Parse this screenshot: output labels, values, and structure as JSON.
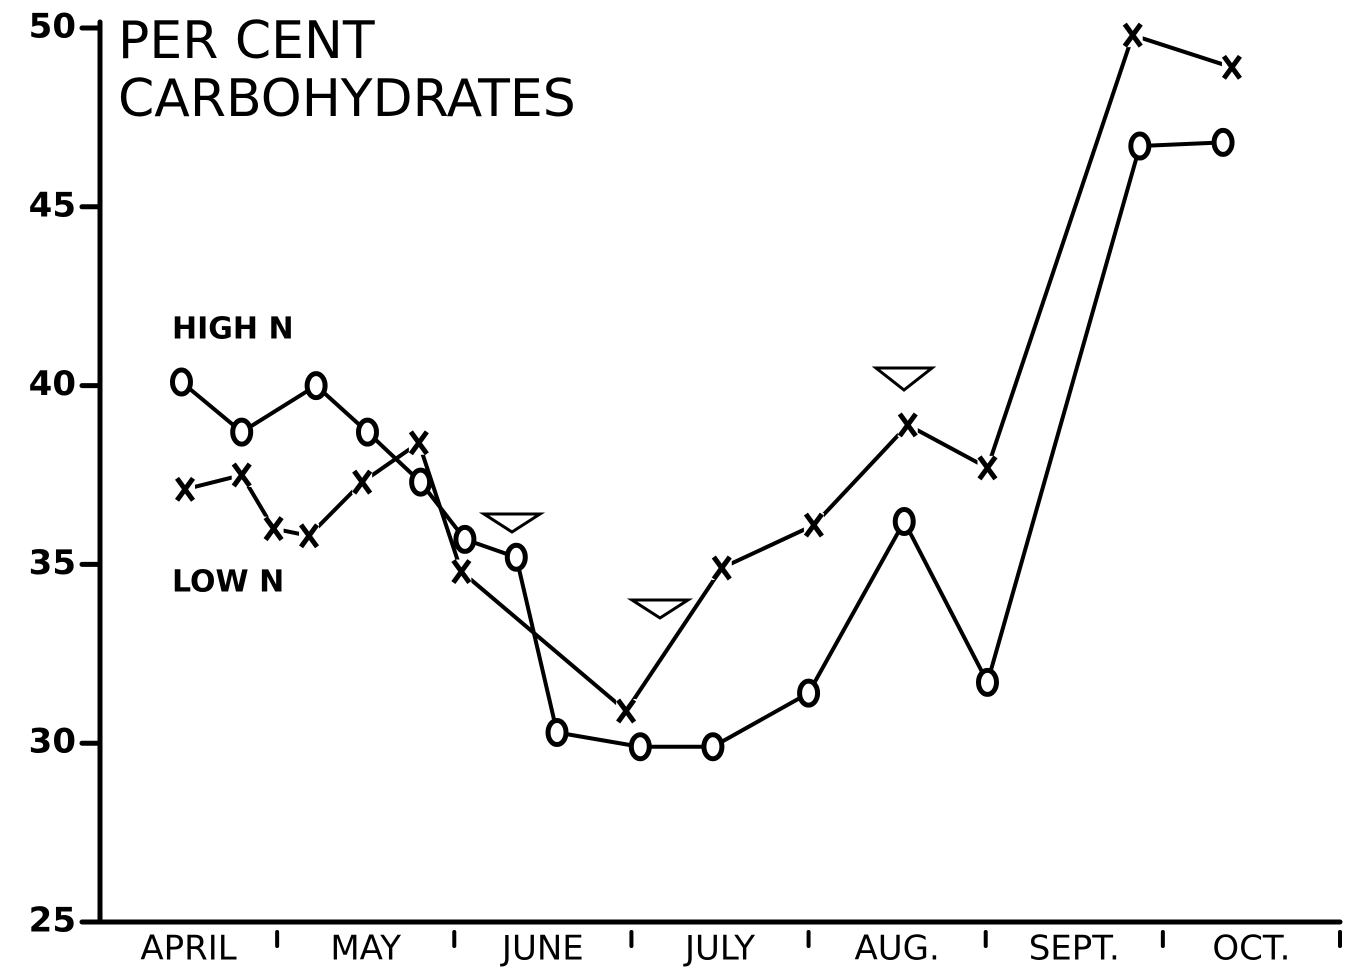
{
  "chart_data": {
    "type": "line",
    "title": [
      "PER CENT",
      "CARBOHYDRATES"
    ],
    "categories": [
      "APRIL",
      "MAY",
      "JUNE",
      "JULY",
      "AUG.",
      "SEPT.",
      "OCT."
    ],
    "xlim": [
      0,
      7
    ],
    "xticks": [
      1,
      2,
      3,
      4,
      5,
      6,
      7
    ],
    "ylim": [
      25,
      50
    ],
    "yticks": [
      25,
      30,
      35,
      40,
      45,
      50
    ],
    "grid": false,
    "series": [
      {
        "name": "HIGH N",
        "marker": "o",
        "color": "#000000",
        "x": [
          0.46,
          0.8,
          1.22,
          1.51,
          1.81,
          2.06,
          2.35,
          2.58,
          3.05,
          3.46,
          4.0,
          4.54,
          5.01,
          5.87,
          6.34
        ],
        "values": [
          40.1,
          38.7,
          40.0,
          38.7,
          37.3,
          35.7,
          35.2,
          30.3,
          29.9,
          29.9,
          31.4,
          36.2,
          31.7,
          46.7,
          46.8
        ]
      },
      {
        "name": "LOW N",
        "marker": "x",
        "color": "#000000",
        "x": [
          0.48,
          0.8,
          0.98,
          1.18,
          1.48,
          1.8,
          2.04,
          2.97,
          3.51,
          4.03,
          4.56,
          5.01,
          5.83,
          6.39
        ],
        "values": [
          37.1,
          37.5,
          36.0,
          35.8,
          37.3,
          38.4,
          34.8,
          30.9,
          34.9,
          36.1,
          38.9,
          37.7,
          49.8,
          48.9
        ]
      }
    ]
  }
}
